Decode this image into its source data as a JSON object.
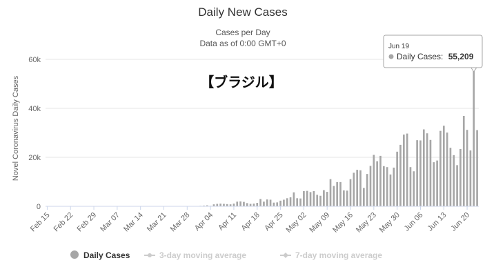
{
  "chart_data": {
    "type": "bar",
    "title": "Daily New Cases",
    "subtitle_line1": "Cases per Day",
    "subtitle_line2": "Data as of 0:00 GMT+0",
    "ylabel": "Novel Coronavirus Daily Cases",
    "annotation": "【ブラジル】",
    "ylim": [
      0,
      60000
    ],
    "yticks": [
      0,
      20000,
      40000,
      60000
    ],
    "ytick_labels": [
      "0",
      "20k",
      "40k",
      "60k"
    ],
    "x_start": "Feb 15",
    "x_tick_labels": [
      "Feb 15",
      "Feb 22",
      "Feb 29",
      "Mar 07",
      "Mar 14",
      "Mar 21",
      "Mar 28",
      "Apr 04",
      "Apr 11",
      "Apr 18",
      "Apr 25",
      "May 02",
      "May 09",
      "May 16",
      "May 23",
      "May 30",
      "Jun 06",
      "Jun 13",
      "Jun 20"
    ],
    "series": [
      {
        "name": "Daily Cases",
        "color": "#a6a6a6",
        "values": [
          0,
          0,
          0,
          0,
          0,
          0,
          0,
          0,
          0,
          0,
          0,
          0,
          0,
          0,
          0,
          0,
          0,
          0,
          0,
          0,
          0,
          0,
          0,
          0,
          0,
          0,
          0,
          0,
          0,
          0,
          0,
          0,
          0,
          0,
          0,
          0,
          0,
          0,
          0,
          0,
          0,
          0,
          0,
          0,
          0,
          0,
          200,
          300,
          400,
          200,
          800,
          1000,
          1100,
          1000,
          900,
          800,
          1100,
          1900,
          2000,
          1800,
          1300,
          1000,
          1100,
          1400,
          3000,
          1900,
          2800,
          2700,
          1500,
          1600,
          2300,
          2700,
          3300,
          3700,
          5700,
          3300,
          3200,
          6200,
          6300,
          5800,
          6200,
          4700,
          4300,
          6600,
          5900,
          11100,
          8300,
          9900,
          9900,
          6500,
          6400,
          11100,
          13700,
          14900,
          14700,
          7500,
          13200,
          16500,
          21000,
          18400,
          20600,
          16400,
          16000,
          13000,
          15800,
          22300,
          25100,
          29300,
          29700,
          16000,
          14300,
          27000,
          26900,
          31400,
          29800,
          27100,
          18000,
          18700,
          30800,
          32900,
          30100,
          23900,
          20900,
          16800,
          23400,
          36900,
          31200,
          22800,
          55209,
          31100
        ]
      },
      {
        "name": "3-day moving average"
      },
      {
        "name": "7-day moving average"
      }
    ],
    "tooltip": {
      "date": "Jun 19",
      "series": "Daily Cases:",
      "value": "55,209"
    },
    "grid": true,
    "legend": "bottom-center"
  }
}
